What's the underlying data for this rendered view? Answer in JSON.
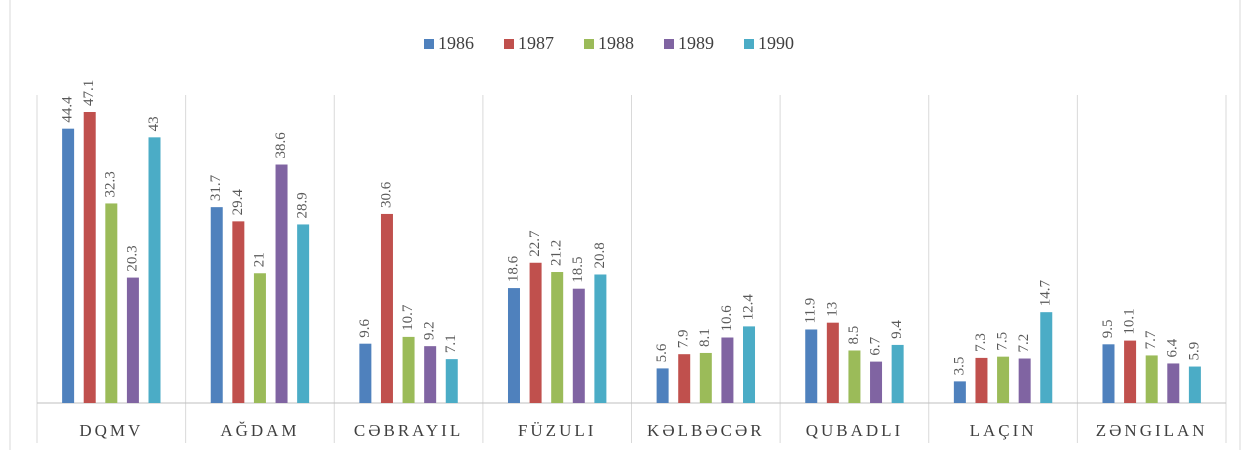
{
  "chart_data": {
    "type": "bar",
    "categories": [
      "DQMV",
      "AĞDAM",
      "CƏBRAYIL",
      "FÜZULI",
      "KƏLBƏCƏR",
      "QUBADLI",
      "LAÇIN",
      "ZƏNGILAN"
    ],
    "series": [
      {
        "name": "1986",
        "color": "#4f81bd",
        "values": [
          44.4,
          31.7,
          9.6,
          18.6,
          5.6,
          11.9,
          3.5,
          9.5
        ]
      },
      {
        "name": "1987",
        "color": "#c0504d",
        "values": [
          47.1,
          29.4,
          30.6,
          22.7,
          7.9,
          13,
          7.3,
          10.1
        ]
      },
      {
        "name": "1988",
        "color": "#9bbb59",
        "values": [
          32.3,
          21,
          10.7,
          21.2,
          8.1,
          8.5,
          7.5,
          7.7
        ]
      },
      {
        "name": "1989",
        "color": "#8064a2",
        "values": [
          20.3,
          38.6,
          9.2,
          18.5,
          10.6,
          6.7,
          7.2,
          6.4
        ]
      },
      {
        "name": "1990",
        "color": "#4bacc6",
        "values": [
          43,
          28.9,
          7.1,
          20.8,
          12.4,
          9.4,
          14.7,
          5.9
        ]
      }
    ],
    "legend": "top"
  }
}
